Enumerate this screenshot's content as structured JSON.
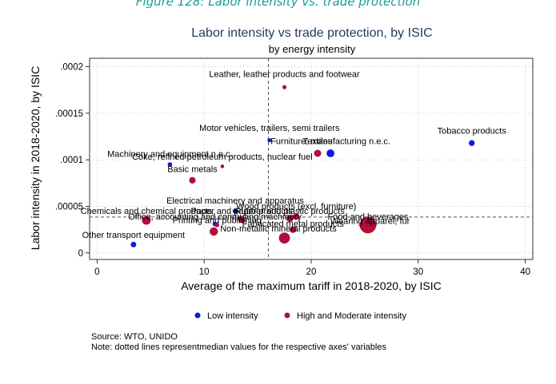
{
  "figure_caption": "Figure 128: Labor intensity vs. trade protection",
  "source": "Source: WTO, UNIDO",
  "note": "Note: dotted lines representmedian values for the respective axes' variables",
  "colors": {
    "low": "#0b1be3",
    "high": "#b0103a",
    "title": "#1f3a5f",
    "caption": "#1a9a9a"
  },
  "chart_data": {
    "type": "scatter",
    "title": "Labor intensity vs trade protection, by ISIC",
    "subtitle": "by energy intensity",
    "xlabel": "Average of the maximum tariff in 2018-2020, by ISIC",
    "ylabel": "Labor intensity in 2018-2020, by ISIC",
    "xlim": [
      -0.7,
      40.7
    ],
    "ylim": [
      -7e-06,
      0.000209
    ],
    "x_ticks": [
      0,
      10,
      20,
      30,
      40
    ],
    "y_ticks": [
      0,
      5e-05,
      0.0001,
      0.00015,
      0.0002
    ],
    "y_tick_labels": [
      "0",
      ".00005",
      ".0001",
      ".00015",
      ".0002"
    ],
    "median_x": 16.0,
    "median_y": 3.85e-05,
    "legend": {
      "position": "bottom",
      "entries": [
        {
          "key": "low",
          "label": "Low intensity"
        },
        {
          "key": "high",
          "label": "High and Moderate intensity"
        }
      ]
    },
    "points": [
      {
        "label": "Leather, leather products and footwear",
        "x": 17.5,
        "y": 0.000178,
        "size": 1.0,
        "group": "high"
      },
      {
        "label": "Tobacco products",
        "x": 35.0,
        "y": 0.000118,
        "size": 2.0,
        "group": "low"
      },
      {
        "label": "Motor vehicles, trailers, semi trailers",
        "x": 16.1,
        "y": 0.000121,
        "size": 1.0,
        "group": "low"
      },
      {
        "label": "Furniture; manufacturing n.e.c.",
        "x": 21.8,
        "y": 0.000107,
        "size": 3.5,
        "group": "low"
      },
      {
        "label": "Textiles",
        "x": 20.6,
        "y": 0.000107,
        "size": 3.0,
        "group": "high"
      },
      {
        "label": "Machinery and equipment n.e.c.",
        "x": 6.8,
        "y": 9.5e-05,
        "size": 1.2,
        "group": "low"
      },
      {
        "label": "Coke, refined petroleum products, nuclear fuel",
        "x": 11.7,
        "y": 9.3e-05,
        "size": 0.8,
        "group": "high"
      },
      {
        "label": "Basic metals",
        "x": 8.9,
        "y": 7.8e-05,
        "size": 2.5,
        "group": "high"
      },
      {
        "label": "Electrical machinery and apparatus",
        "x": 12.9,
        "y": 4.5e-05,
        "size": 1.5,
        "group": "low"
      },
      {
        "label": "Wood products (excl. furniture)",
        "x": 18.6,
        "y": 3.9e-05,
        "size": 2.5,
        "group": "high"
      },
      {
        "label": "Chemicals and chemical products",
        "x": 4.6,
        "y": 3.5e-05,
        "size": 4.5,
        "group": "high"
      },
      {
        "label": "Paper and paper products",
        "x": 13.5,
        "y": 3.6e-05,
        "size": 2.8,
        "group": "high"
      },
      {
        "label": "Rubber and plastic products",
        "x": 18.0,
        "y": 3.7e-05,
        "size": 3.0,
        "group": "high"
      },
      {
        "label": "Food and beverages",
        "x": 25.3,
        "y": 3e-05,
        "size": 16.0,
        "group": "high"
      },
      {
        "label": "Office, accounting and computing machinery",
        "x": 11.0,
        "y": 3.1e-05,
        "size": 1.2,
        "group": "low"
      },
      {
        "label": "Printing and publishing",
        "x": 11.2,
        "y": 3e-05,
        "size": 1.2,
        "group": "high"
      },
      {
        "label": "Wearing apparel, fur",
        "x": 25.5,
        "y": 2.8e-05,
        "size": 1.5,
        "group": "high"
      },
      {
        "label": "Fabricated metal products",
        "x": 18.3,
        "y": 2.5e-05,
        "size": 2.5,
        "group": "high"
      },
      {
        "label": "Non-metallic mineral products",
        "x": 10.9,
        "y": 2.3e-05,
        "size": 4.0,
        "group": "high"
      },
      {
        "label": "Non-metallic mineral products, large",
        "x": 17.5,
        "y": 1.6e-05,
        "size": 7.0,
        "group": "high"
      },
      {
        "label": "Other transport equipment",
        "x": 3.4,
        "y": 9e-06,
        "size": 1.8,
        "group": "low"
      }
    ]
  }
}
